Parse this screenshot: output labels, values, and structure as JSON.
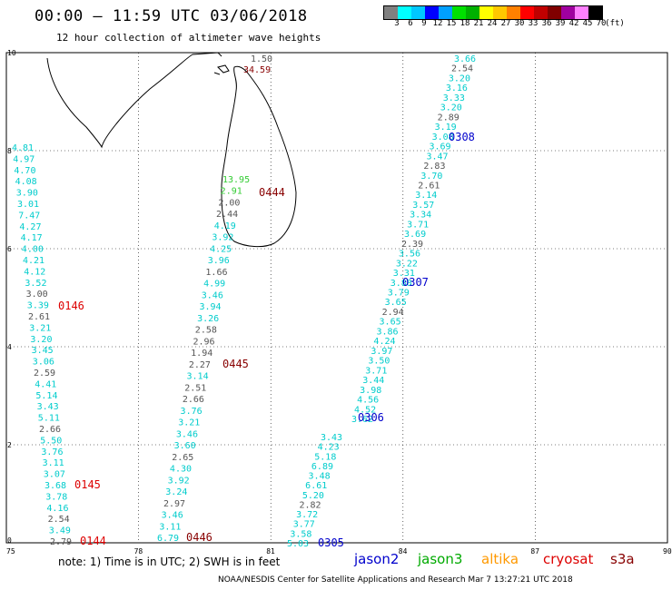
{
  "header": {
    "title": "00:00 — 11:59 UTC 03/06/2018",
    "subtitle": "12 hour collection of altimeter wave heights"
  },
  "legend": {
    "colors": [
      "#808080",
      "#00ffff",
      "#00c8ff",
      "#0000ff",
      "#00a0ff",
      "#00e000",
      "#00b000",
      "#ffff00",
      "#ffc800",
      "#ff8000",
      "#ff0000",
      "#c00000",
      "#800000",
      "#a000a0",
      "#ff80ff",
      "#000000"
    ],
    "labels": [
      "3",
      "6",
      "9",
      "12",
      "15",
      "18",
      "21",
      "24",
      "27",
      "30",
      "33",
      "36",
      "39",
      "42",
      "45",
      "70",
      "(ft)"
    ]
  },
  "axes": {
    "lon_ticks": [
      "75",
      "78",
      "81",
      "84",
      "87",
      "90"
    ],
    "lat_ticks": [
      "0",
      "2",
      "4",
      "6",
      "8",
      "10"
    ]
  },
  "colors": {
    "cyan": "#00cccc",
    "gray": "#555555",
    "jason2": "#0000cc",
    "red": "#dd0000",
    "maroon": "#880000",
    "green": "#33cc33"
  },
  "tracks": [
    {
      "id": "track1",
      "color_default": "cyan",
      "items": [
        {
          "v": "4.81",
          "c": "cyan"
        },
        {
          "v": "4.97",
          "c": "cyan"
        },
        {
          "v": "4.70",
          "c": "cyan"
        },
        {
          "v": "4.08",
          "c": "cyan"
        },
        {
          "v": "3.90",
          "c": "cyan"
        },
        {
          "v": "3.01",
          "c": "cyan"
        },
        {
          "v": "7.47",
          "c": "cyan"
        },
        {
          "v": "4.27",
          "c": "cyan"
        },
        {
          "v": "4.17",
          "c": "cyan"
        },
        {
          "v": "4.00",
          "c": "cyan"
        },
        {
          "v": "4.21",
          "c": "cyan"
        },
        {
          "v": "4.12",
          "c": "cyan"
        },
        {
          "v": "3.52",
          "c": "cyan"
        },
        {
          "v": "3.00",
          "c": "gray"
        },
        {
          "v": "3.39",
          "c": "cyan"
        },
        {
          "v": "2.61",
          "c": "gray"
        },
        {
          "v": "3.21",
          "c": "cyan"
        },
        {
          "v": "3.20",
          "c": "cyan"
        },
        {
          "v": "3.45",
          "c": "cyan"
        },
        {
          "v": "3.06",
          "c": "cyan"
        },
        {
          "v": "2.59",
          "c": "gray"
        },
        {
          "v": "4.41",
          "c": "cyan"
        },
        {
          "v": "5.14",
          "c": "cyan"
        },
        {
          "v": "3.43",
          "c": "cyan"
        },
        {
          "v": "5.11",
          "c": "cyan"
        },
        {
          "v": "2.66",
          "c": "gray"
        },
        {
          "v": "5.50",
          "c": "cyan"
        },
        {
          "v": "3.76",
          "c": "cyan"
        },
        {
          "v": "3.11",
          "c": "cyan"
        },
        {
          "v": "3.07",
          "c": "cyan"
        },
        {
          "v": "3.68",
          "c": "cyan"
        },
        {
          "v": "3.78",
          "c": "cyan"
        },
        {
          "v": "4.16",
          "c": "cyan"
        },
        {
          "v": "2.54",
          "c": "gray"
        },
        {
          "v": "3.49",
          "c": "cyan"
        },
        {
          "v": "2.79",
          "c": "gray"
        }
      ]
    },
    {
      "id": "track2",
      "items": [
        {
          "v": "13.95",
          "c": "green"
        },
        {
          "v": "2.91",
          "c": "green"
        },
        {
          "v": "2.00",
          "c": "gray"
        },
        {
          "v": "2.44",
          "c": "gray"
        },
        {
          "v": "4.19",
          "c": "cyan"
        },
        {
          "v": "3.92",
          "c": "cyan"
        },
        {
          "v": "4.25",
          "c": "cyan"
        },
        {
          "v": "3.96",
          "c": "cyan"
        },
        {
          "v": "1.66",
          "c": "gray"
        },
        {
          "v": "4.99",
          "c": "cyan"
        },
        {
          "v": "3.46",
          "c": "cyan"
        },
        {
          "v": "3.94",
          "c": "cyan"
        },
        {
          "v": "3.26",
          "c": "cyan"
        },
        {
          "v": "2.58",
          "c": "gray"
        },
        {
          "v": "2.96",
          "c": "gray"
        },
        {
          "v": "1.94",
          "c": "gray"
        },
        {
          "v": "2.27",
          "c": "gray"
        },
        {
          "v": "3.14",
          "c": "cyan"
        },
        {
          "v": "2.51",
          "c": "gray"
        },
        {
          "v": "2.66",
          "c": "gray"
        },
        {
          "v": "3.76",
          "c": "cyan"
        },
        {
          "v": "3.21",
          "c": "cyan"
        },
        {
          "v": "3.46",
          "c": "cyan"
        },
        {
          "v": "3.60",
          "c": "cyan"
        },
        {
          "v": "2.65",
          "c": "gray"
        },
        {
          "v": "4.30",
          "c": "cyan"
        },
        {
          "v": "3.92",
          "c": "cyan"
        },
        {
          "v": "3.24",
          "c": "cyan"
        },
        {
          "v": "2.97",
          "c": "gray"
        },
        {
          "v": "3.46",
          "c": "cyan"
        },
        {
          "v": "3.11",
          "c": "cyan"
        },
        {
          "v": "6.79",
          "c": "cyan"
        }
      ]
    },
    {
      "id": "track3",
      "items": [
        {
          "v": "3.43",
          "c": "cyan"
        },
        {
          "v": "4.23",
          "c": "cyan"
        },
        {
          "v": "5.18",
          "c": "cyan"
        },
        {
          "v": "6.89",
          "c": "cyan"
        },
        {
          "v": "3.48",
          "c": "cyan"
        },
        {
          "v": "6.61",
          "c": "cyan"
        },
        {
          "v": "5.20",
          "c": "cyan"
        },
        {
          "v": "2.82",
          "c": "gray"
        },
        {
          "v": "3.72",
          "c": "cyan"
        },
        {
          "v": "3.77",
          "c": "cyan"
        },
        {
          "v": "3.58",
          "c": "cyan"
        },
        {
          "v": "5.03",
          "c": "cyan"
        }
      ]
    },
    {
      "id": "track4",
      "items": [
        {
          "v": "3.66",
          "c": "cyan"
        },
        {
          "v": "2.54",
          "c": "gray"
        },
        {
          "v": "3.20",
          "c": "cyan"
        },
        {
          "v": "3.16",
          "c": "cyan"
        },
        {
          "v": "3.33",
          "c": "cyan"
        },
        {
          "v": "3.20",
          "c": "cyan"
        },
        {
          "v": "2.89",
          "c": "gray"
        },
        {
          "v": "3.19",
          "c": "cyan"
        },
        {
          "v": "3.08",
          "c": "cyan"
        },
        {
          "v": "3.69",
          "c": "cyan"
        },
        {
          "v": "3.47",
          "c": "cyan"
        },
        {
          "v": "2.83",
          "c": "gray"
        },
        {
          "v": "3.70",
          "c": "cyan"
        },
        {
          "v": "2.61",
          "c": "gray"
        },
        {
          "v": "3.14",
          "c": "cyan"
        },
        {
          "v": "3.57",
          "c": "cyan"
        },
        {
          "v": "3.34",
          "c": "cyan"
        },
        {
          "v": "3.71",
          "c": "cyan"
        },
        {
          "v": "3.69",
          "c": "cyan"
        },
        {
          "v": "2.39",
          "c": "gray"
        },
        {
          "v": "3.56",
          "c": "cyan"
        },
        {
          "v": "3.22",
          "c": "cyan"
        },
        {
          "v": "3.31",
          "c": "cyan"
        },
        {
          "v": "3.88",
          "c": "cyan"
        },
        {
          "v": "3.79",
          "c": "cyan"
        },
        {
          "v": "3.65",
          "c": "cyan"
        },
        {
          "v": "2.94",
          "c": "gray"
        },
        {
          "v": "3.65",
          "c": "cyan"
        },
        {
          "v": "3.86",
          "c": "cyan"
        },
        {
          "v": "4.24",
          "c": "cyan"
        },
        {
          "v": "3.97",
          "c": "cyan"
        },
        {
          "v": "3.50",
          "c": "cyan"
        },
        {
          "v": "3.71",
          "c": "cyan"
        },
        {
          "v": "3.44",
          "c": "cyan"
        },
        {
          "v": "3.98",
          "c": "cyan"
        },
        {
          "v": "4.56",
          "c": "cyan"
        },
        {
          "v": "4.52",
          "c": "cyan"
        },
        {
          "v": "3.62",
          "c": "cyan"
        }
      ]
    }
  ],
  "time_labels": [
    {
      "t": "0146",
      "c": "red"
    },
    {
      "t": "0145",
      "c": "red"
    },
    {
      "t": "0144",
      "c": "red"
    },
    {
      "t": "0444",
      "c": "maroon"
    },
    {
      "t": "0445",
      "c": "maroon"
    },
    {
      "t": "0446",
      "c": "maroon"
    },
    {
      "t": "0308",
      "c": "jason2"
    },
    {
      "t": "0307",
      "c": "jason2"
    },
    {
      "t": "0306",
      "c": "jason2"
    },
    {
      "t": "0305",
      "c": "jason2"
    }
  ],
  "island_labels": [
    {
      "v": "1.50",
      "c": "gray"
    },
    {
      "v": "34.59",
      "c": "maroon"
    }
  ],
  "footer": {
    "note": "note:  1) Time is in UTC;  2) SWH is in feet",
    "credit": "NOAA/NESDIS Center for Satellite Applications and Research    Mar  7 13:27:21 UTC 2018",
    "satellites": [
      {
        "name": "jason2",
        "color": "#0000cc"
      },
      {
        "name": "jason3",
        "color": "#00aa00"
      },
      {
        "name": "altika",
        "color": "#ff9900"
      },
      {
        "name": "cryosat",
        "color": "#dd0000"
      },
      {
        "name": "s3a",
        "color": "#880000"
      }
    ]
  }
}
